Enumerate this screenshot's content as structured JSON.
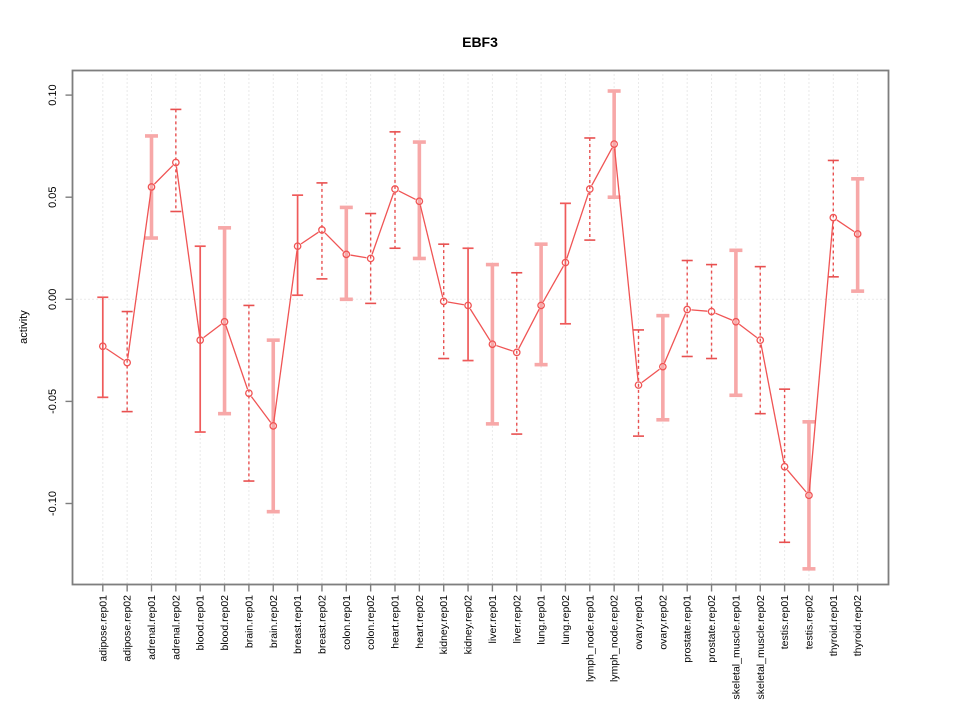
{
  "chart_data": {
    "type": "line",
    "title": "EBF3",
    "xlabel": "",
    "ylabel": "activity",
    "ylim": [
      -0.139,
      0.112
    ],
    "yticks": [
      0.1,
      0.05,
      0.0,
      -0.05,
      -0.1
    ],
    "ytick_labels": [
      "0.10",
      "0.05",
      "0.00",
      "-0.05",
      "-0.10"
    ],
    "grid": {
      "vertical_dotted_per_category": true,
      "horizontal_zero_line_dotted": true
    },
    "legend": "none",
    "marker": "open-circle",
    "categories": [
      "adipose.rep01",
      "adipose.rep02",
      "adrenal.rep01",
      "adrenal.rep02",
      "blood.rep01",
      "blood.rep02",
      "brain.rep01",
      "brain.rep02",
      "breast.rep01",
      "breast.rep02",
      "colon.rep01",
      "colon.rep02",
      "heart.rep01",
      "heart.rep02",
      "kidney.rep01",
      "kidney.rep02",
      "liver.rep01",
      "liver.rep02",
      "lung.rep01",
      "lung.rep02",
      "lymph_node.rep01",
      "lymph_node.rep02",
      "ovary.rep01",
      "ovary.rep02",
      "prostate.rep01",
      "prostate.rep02",
      "skeletal_muscle.rep01",
      "skeletal_muscle.rep02",
      "testis.rep01",
      "testis.rep02",
      "thyroid.rep01",
      "thyroid.rep02"
    ],
    "series": [
      {
        "name": "activity",
        "values": [
          -0.023,
          -0.031,
          0.055,
          0.067,
          -0.02,
          -0.011,
          -0.046,
          -0.062,
          0.026,
          0.034,
          0.022,
          0.02,
          0.054,
          0.048,
          -0.001,
          -0.003,
          -0.022,
          -0.026,
          -0.003,
          0.018,
          0.054,
          0.076,
          -0.042,
          -0.033,
          -0.005,
          -0.006,
          -0.011,
          -0.02,
          -0.082,
          -0.096,
          0.04,
          0.032
        ],
        "ci_high": [
          0.001,
          -0.006,
          0.08,
          0.093,
          0.026,
          0.035,
          -0.003,
          -0.02,
          0.051,
          0.057,
          0.045,
          0.042,
          0.082,
          0.077,
          0.027,
          0.025,
          0.017,
          0.013,
          0.027,
          0.047,
          0.079,
          0.102,
          -0.015,
          -0.008,
          0.019,
          0.017,
          0.024,
          0.016,
          -0.044,
          -0.06,
          0.068,
          0.059
        ],
        "ci_low": [
          -0.048,
          -0.055,
          0.03,
          0.043,
          -0.065,
          -0.056,
          -0.089,
          -0.104,
          0.002,
          0.01,
          0.0,
          -0.002,
          0.025,
          0.02,
          -0.029,
          -0.03,
          -0.061,
          -0.066,
          -0.032,
          -0.012,
          0.029,
          0.05,
          -0.067,
          -0.059,
          -0.028,
          -0.029,
          -0.047,
          -0.056,
          -0.119,
          -0.132,
          0.011,
          0.004
        ],
        "bar_style": [
          "red",
          "dashed",
          "pink",
          "dashed",
          "red",
          "pink",
          "dashed",
          "pink",
          "red",
          "dashed",
          "pink",
          "dashed",
          "dashed",
          "pink",
          "dashed",
          "red",
          "pink",
          "dashed",
          "pink",
          "red",
          "dashed",
          "pink",
          "dashed",
          "pink",
          "dashed",
          "dashed",
          "pink",
          "dashed",
          "dashed",
          "pink",
          "dashed",
          "pink"
        ]
      }
    ],
    "colors": {
      "line": "#f05454",
      "marker_stroke": "#f05454",
      "errorbar_pink": "#f7a8a8",
      "errorbar_red": "#ef5a5a",
      "errorbar_dashed": "#e85050",
      "gridline": "#d4d4d4",
      "plot_border": "#7e7e7e",
      "text": "#000000"
    }
  }
}
